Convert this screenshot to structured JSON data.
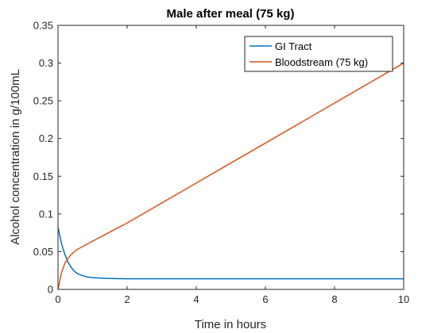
{
  "chart_data": {
    "type": "line",
    "title": "Male after meal (75 kg)",
    "xlabel": "Time in hours",
    "ylabel": "Alcohol concentration in g/100mL",
    "xlim": [
      0,
      10
    ],
    "ylim": [
      0,
      0.35
    ],
    "xticks": [
      0,
      2,
      4,
      6,
      8,
      10
    ],
    "xtick_labels": [
      "0",
      "2",
      "4",
      "6",
      "8",
      "10"
    ],
    "yticks": [
      0,
      0.05,
      0.1,
      0.15,
      0.2,
      0.25,
      0.3,
      0.35
    ],
    "ytick_labels": [
      "0",
      "0.05",
      "0.1",
      "0.15",
      "0.2",
      "0.25",
      "0.3",
      "0.35"
    ],
    "grid": false,
    "legend_position": "top-right",
    "series": [
      {
        "name": "GI Tract",
        "color": "#0072BD",
        "x": [
          0,
          0.1,
          0.2,
          0.3,
          0.4,
          0.5,
          0.6,
          0.8,
          1.0,
          1.5,
          2,
          4,
          6,
          8,
          10
        ],
        "y": [
          0.082,
          0.061,
          0.046,
          0.035,
          0.028,
          0.023,
          0.02,
          0.017,
          0.0155,
          0.0145,
          0.014,
          0.014,
          0.014,
          0.014,
          0.014
        ]
      },
      {
        "name": "Bloodstream (75 kg)",
        "color": "#D95319",
        "x": [
          0,
          0.1,
          0.2,
          0.3,
          0.4,
          0.5,
          0.6,
          0.8,
          1.0,
          1.5,
          2,
          4,
          6,
          8,
          10
        ],
        "y": [
          0,
          0.022,
          0.035,
          0.042,
          0.047,
          0.051,
          0.054,
          0.059,
          0.064,
          0.076,
          0.088,
          0.141,
          0.194,
          0.247,
          0.3
        ]
      }
    ]
  }
}
